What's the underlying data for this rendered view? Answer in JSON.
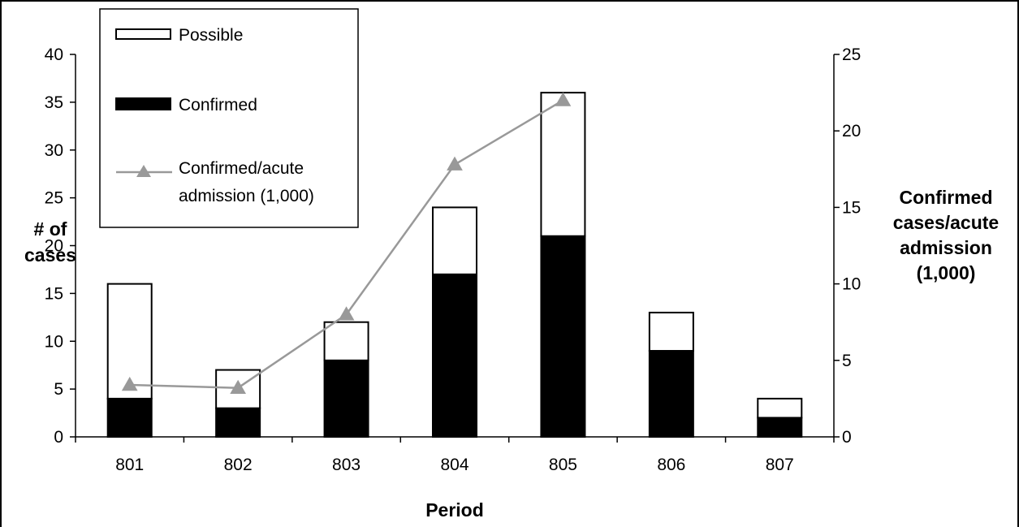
{
  "chart_data": {
    "type": "bar",
    "stacked": true,
    "categories": [
      "801",
      "802",
      "803",
      "804",
      "805",
      "806",
      "807"
    ],
    "series": [
      {
        "name": "Confirmed",
        "type": "bar",
        "axis": "left",
        "color": "#000000",
        "values": [
          4,
          3,
          8,
          17,
          21,
          9,
          2
        ]
      },
      {
        "name": "Possible",
        "type": "bar",
        "axis": "left",
        "color": "#ffffff",
        "values": [
          12,
          4,
          4,
          7,
          15,
          4,
          2
        ]
      },
      {
        "name": "Confirmed/acute admission (1,000)",
        "type": "line",
        "axis": "right",
        "color": "#999999",
        "marker": "triangle",
        "values": [
          3.4,
          3.2,
          8.0,
          17.8,
          22.0,
          null,
          null
        ]
      }
    ],
    "legend": [
      {
        "name": "Possible",
        "lines": [
          "Possible"
        ]
      },
      {
        "name": "Confirmed",
        "lines": [
          "Confirmed"
        ]
      },
      {
        "name": "Confirmed/acute admission (1,000)",
        "lines": [
          "Confirmed/acute",
          "admission (1,000)"
        ]
      }
    ],
    "xlabel": "Period",
    "ylabel_lines": [
      "# of",
      "cases"
    ],
    "y2label_lines": [
      "Confirmed",
      "cases/acute",
      "admission",
      "(1,000)"
    ],
    "ylim": [
      0,
      40
    ],
    "yticks": [
      "0",
      "5",
      "10",
      "15",
      "20",
      "25",
      "30",
      "35",
      "40"
    ],
    "y2lim": [
      0,
      25
    ],
    "y2ticks": [
      "0",
      "5",
      "10",
      "15",
      "20",
      "25"
    ],
    "grid": false,
    "legend_position": "top-left"
  }
}
